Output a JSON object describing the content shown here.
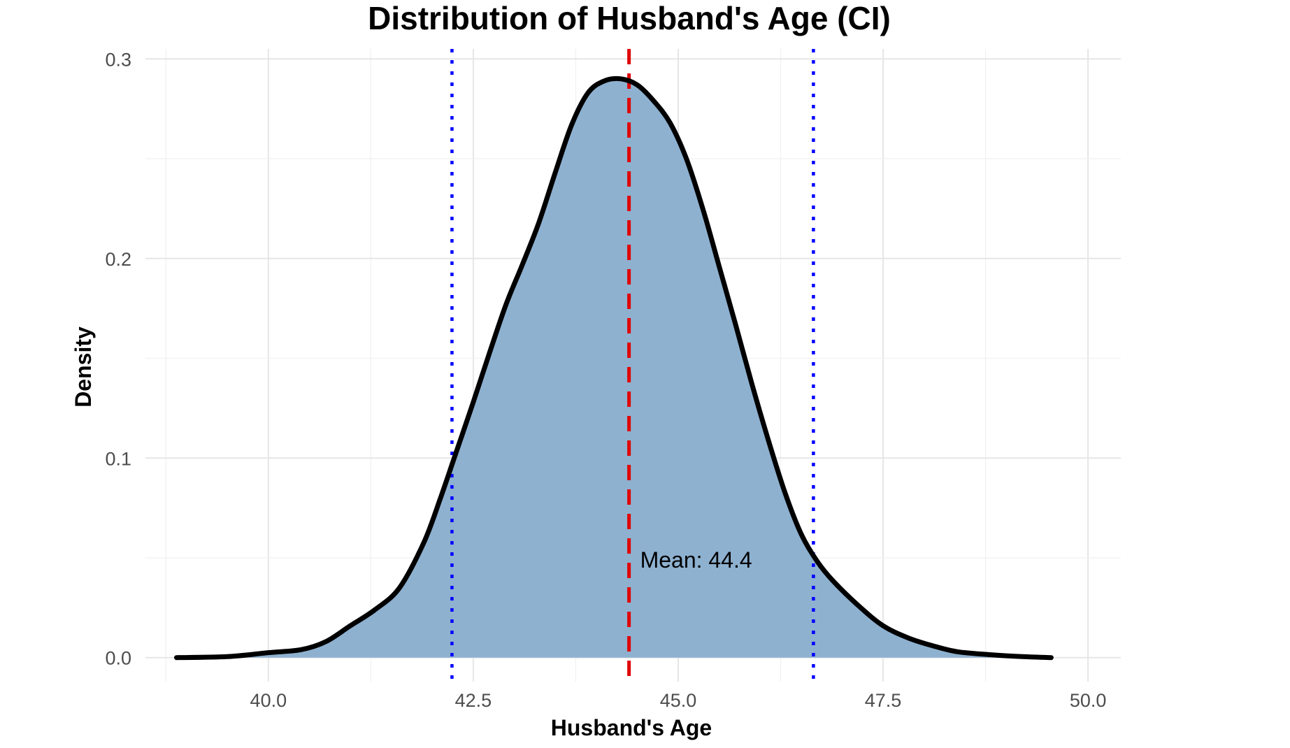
{
  "chart_data": {
    "type": "area",
    "title": "Distribution of Husband's Age (CI)",
    "xlabel": "Husband's Age",
    "ylabel": "Density",
    "xlim": [
      38.5,
      50.4
    ],
    "ylim": [
      -0.012,
      0.305
    ],
    "x_ticks": [
      "40.0",
      "42.5",
      "45.0",
      "47.5",
      "50.0"
    ],
    "x_tick_values": [
      40.0,
      42.5,
      45.0,
      47.5,
      50.0
    ],
    "y_ticks": [
      "0.0",
      "0.1",
      "0.2",
      "0.3"
    ],
    "y_tick_values": [
      0.0,
      0.1,
      0.2,
      0.3
    ],
    "grid": true,
    "fill_color": "#8eb1d0",
    "line_color": "#000000",
    "density": {
      "x": [
        38.88,
        39.5,
        40.0,
        40.4,
        40.7,
        41.0,
        41.3,
        41.6,
        41.9,
        42.1,
        42.3,
        42.5,
        42.7,
        42.9,
        43.1,
        43.3,
        43.5,
        43.7,
        43.9,
        44.1,
        44.3,
        44.5,
        44.7,
        44.9,
        45.1,
        45.3,
        45.5,
        45.7,
        45.9,
        46.1,
        46.3,
        46.5,
        46.7,
        46.9,
        47.2,
        47.5,
        47.8,
        48.1,
        48.4,
        48.8,
        49.2,
        49.55
      ],
      "y": [
        0.0,
        0.0005,
        0.0025,
        0.004,
        0.008,
        0.016,
        0.024,
        0.035,
        0.058,
        0.08,
        0.104,
        0.128,
        0.153,
        0.177,
        0.197,
        0.218,
        0.243,
        0.267,
        0.283,
        0.289,
        0.29,
        0.287,
        0.279,
        0.268,
        0.25,
        0.225,
        0.196,
        0.167,
        0.137,
        0.109,
        0.083,
        0.062,
        0.048,
        0.038,
        0.026,
        0.016,
        0.01,
        0.006,
        0.003,
        0.0015,
        0.0005,
        0.0
      ]
    },
    "mean": 44.4,
    "mean_line_color": "#e00000",
    "mean_label": "Mean: 44.4",
    "ci": [
      42.24,
      46.65
    ],
    "ci_line_color": "#0000ff"
  }
}
